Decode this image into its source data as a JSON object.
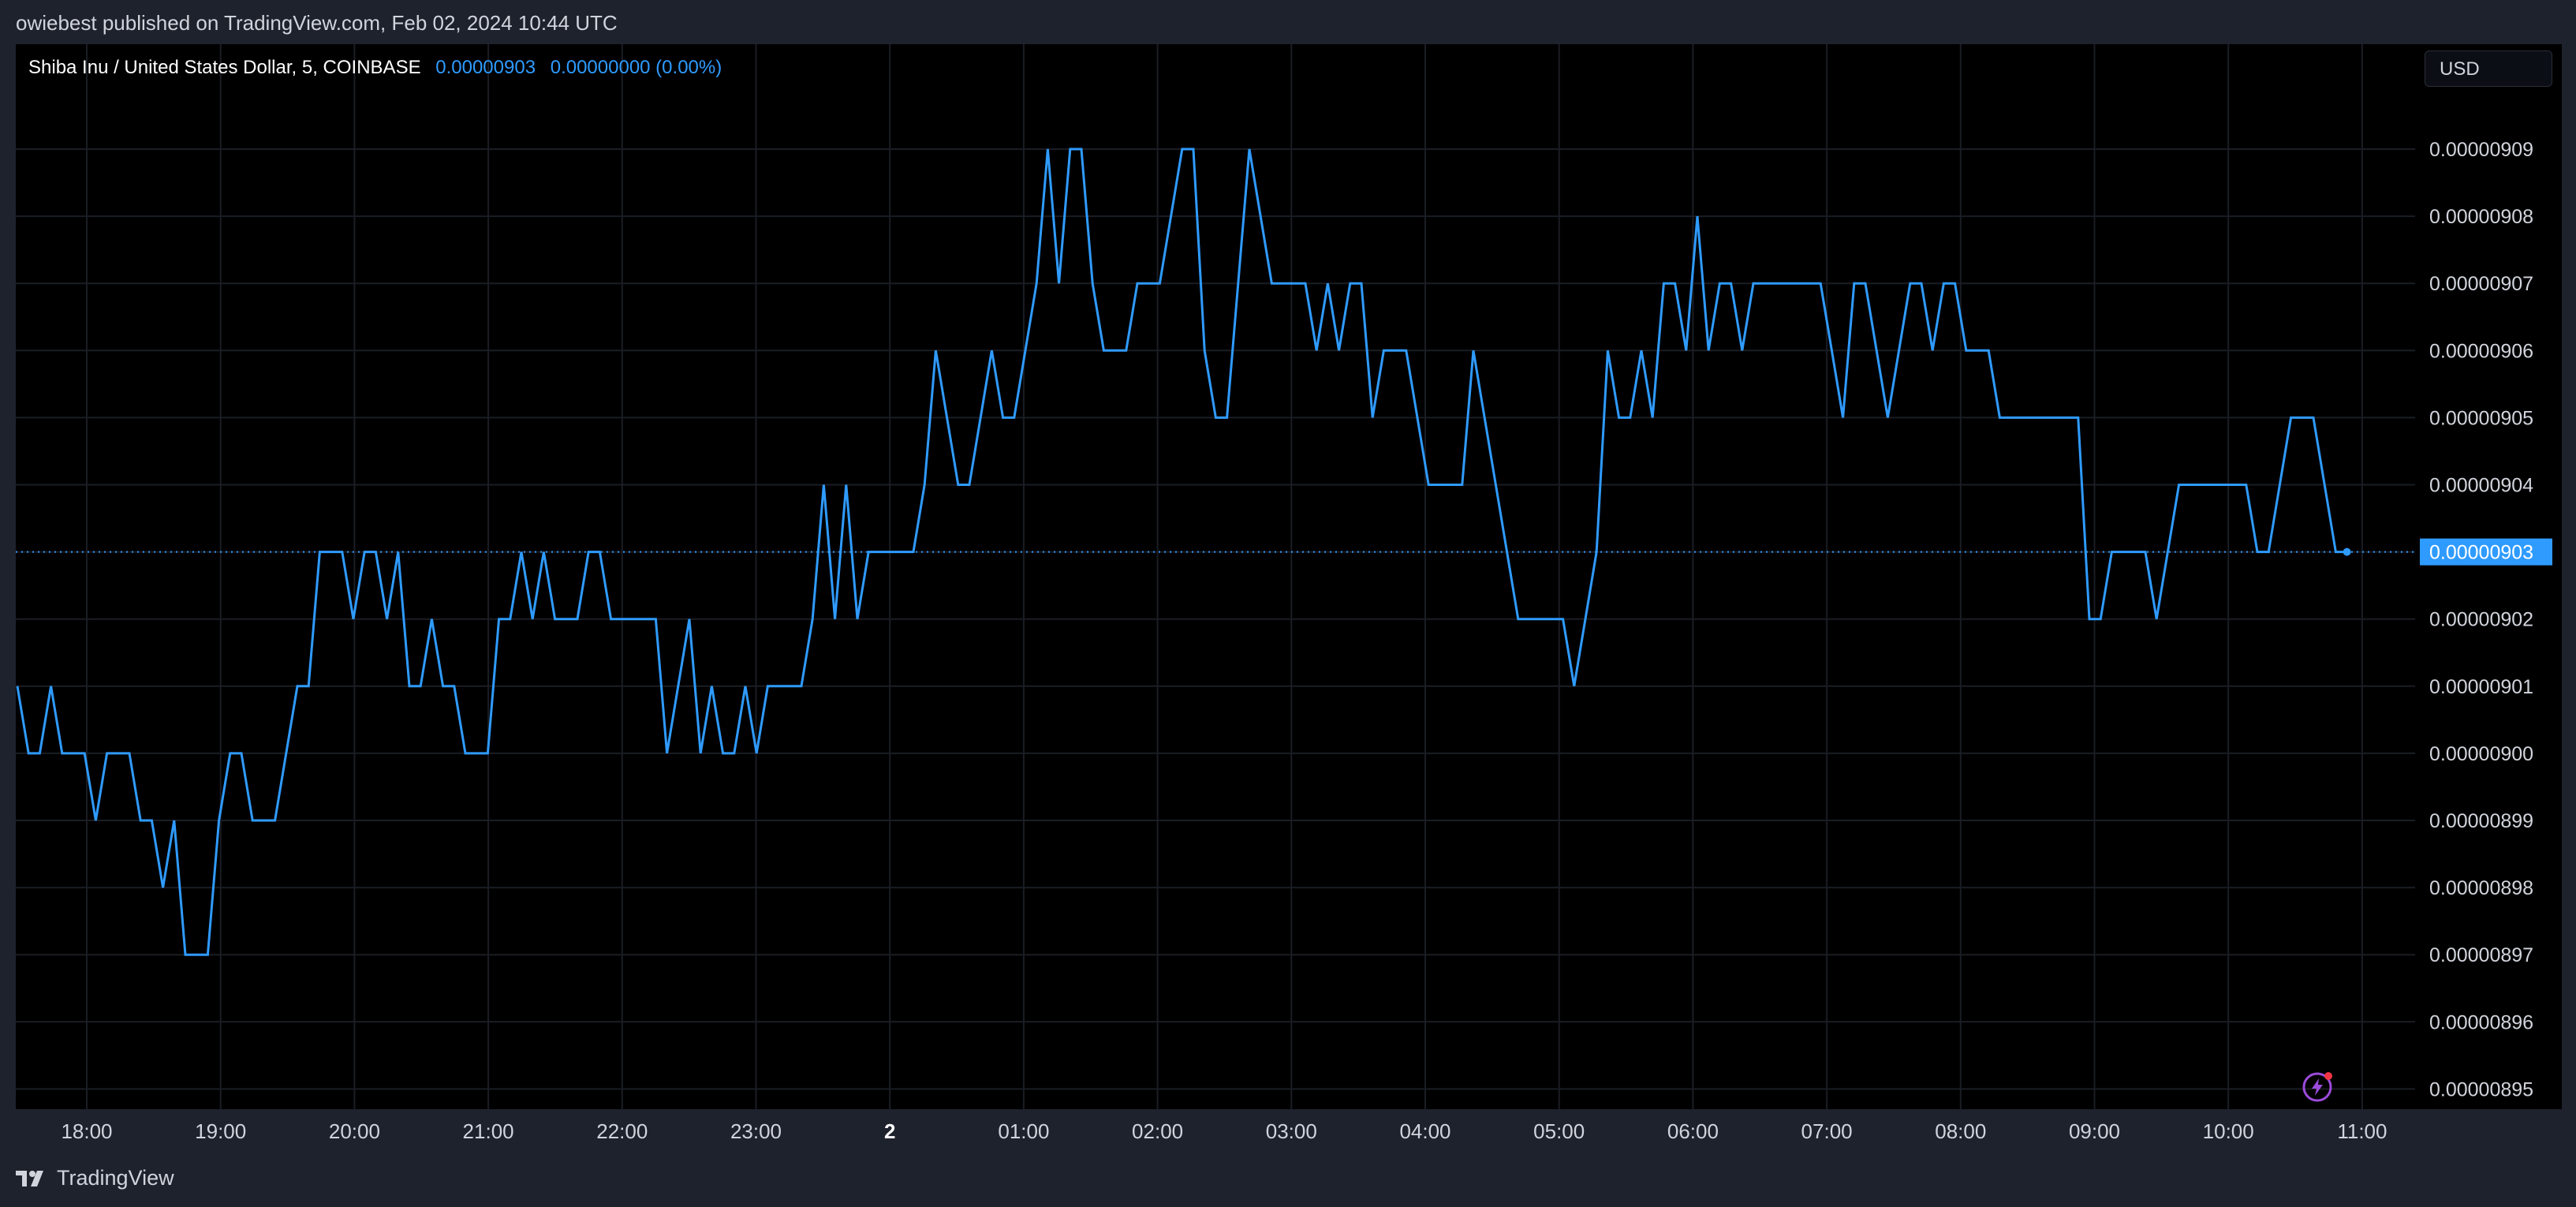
{
  "header": {
    "publisher_text": "owiebest published on TradingView.com, Feb 02, 2024 10:44 UTC"
  },
  "legend": {
    "symbol": "Shiba Inu / United States Dollar, 5, COINBASE",
    "last_price": "0.00000903",
    "change": "0.00000000 (0.00%)"
  },
  "currency_button": {
    "label": "USD"
  },
  "footer": {
    "brand": "TradingView"
  },
  "colors": {
    "line": "#2f9bff",
    "background": "#000000",
    "frame": "#1e222d",
    "price_tag": "#2f9bff",
    "grid": "#1a1d24"
  },
  "icons": {
    "logo": "tradingview-logo-icon",
    "bolt": "lightning-bolt-icon"
  },
  "chart_data": {
    "type": "line",
    "title": "Shiba Inu / United States Dollar, 5, COINBASE",
    "interval_minutes": 5,
    "x_tick_labels": [
      "18:00",
      "19:00",
      "20:00",
      "21:00",
      "22:00",
      "23:00",
      "2",
      "01:00",
      "02:00",
      "03:00",
      "04:00",
      "05:00",
      "06:00",
      "07:00",
      "08:00",
      "09:00",
      "10:00",
      "11:00"
    ],
    "y_tick_labels": [
      "0.00000909",
      "0.00000908",
      "0.00000907",
      "0.00000906",
      "0.00000905",
      "0.00000904",
      "0.00000903",
      "0.00000902",
      "0.00000901",
      "0.00000900",
      "0.00000899",
      "0.00000898",
      "0.00000897",
      "0.00000896",
      "0.00000895"
    ],
    "ylim": [
      8.95e-06,
      9.09e-06
    ],
    "last_value_label": "0.00000903",
    "grid": true,
    "series": [
      {
        "values": [
          9.01,
          9.0,
          9.0,
          9.01,
          9.0,
          9.0,
          9.0,
          8.99,
          9.0,
          9.0,
          9.0,
          8.99,
          8.99,
          8.98,
          8.99,
          8.97,
          8.97,
          8.97,
          8.99,
          9.0,
          9.0,
          8.99,
          8.99,
          8.99,
          9.0,
          9.01,
          9.01,
          9.03,
          9.03,
          9.03,
          9.02,
          9.03,
          9.03,
          9.02,
          9.03,
          9.01,
          9.01,
          9.02,
          9.01,
          9.01,
          9.0,
          9.0,
          9.0,
          9.02,
          9.02,
          9.03,
          9.02,
          9.03,
          9.02,
          9.02,
          9.02,
          9.03,
          9.03,
          9.02,
          9.02,
          9.02,
          9.02,
          9.02,
          9.0,
          9.01,
          9.02,
          9.0,
          9.01,
          9.0,
          9.0,
          9.01,
          9.0,
          9.01,
          9.01,
          9.01,
          9.01,
          9.02,
          9.04,
          9.02,
          9.04,
          9.02,
          9.03,
          9.03,
          9.03,
          9.03,
          9.03,
          9.04,
          9.06,
          9.05,
          9.04,
          9.04,
          9.05,
          9.06,
          9.05,
          9.05,
          9.06,
          9.07,
          9.09,
          9.07,
          9.09,
          9.09,
          9.07,
          9.06,
          9.06,
          9.06,
          9.07,
          9.07,
          9.07,
          9.08,
          9.09,
          9.09,
          9.06,
          9.05,
          9.05,
          9.07,
          9.09,
          9.08,
          9.07,
          9.07,
          9.07,
          9.07,
          9.06,
          9.07,
          9.06,
          9.07,
          9.07,
          9.05,
          9.06,
          9.06,
          9.06,
          9.05,
          9.04,
          9.04,
          9.04,
          9.04,
          9.06,
          9.05,
          9.04,
          9.03,
          9.02,
          9.02,
          9.02,
          9.02,
          9.02,
          9.01,
          9.02,
          9.03,
          9.06,
          9.05,
          9.05,
          9.06,
          9.05,
          9.07,
          9.07,
          9.06,
          9.08,
          9.06,
          9.07,
          9.07,
          9.06,
          9.07,
          9.07,
          9.07,
          9.07,
          9.07,
          9.07,
          9.07,
          9.06,
          9.05,
          9.07,
          9.07,
          9.06,
          9.05,
          9.06,
          9.07,
          9.07,
          9.06,
          9.07,
          9.07,
          9.06,
          9.06,
          9.06,
          9.05,
          9.05,
          9.05,
          9.05,
          9.05,
          9.05,
          9.05,
          9.05,
          9.02,
          9.02,
          9.03,
          9.03,
          9.03,
          9.03,
          9.02,
          9.03,
          9.04,
          9.04,
          9.04,
          9.04,
          9.04,
          9.04,
          9.04,
          9.03,
          9.03,
          9.04,
          9.05,
          9.05,
          9.05,
          9.04,
          9.03,
          9.03
        ],
        "unit_scale": "1e-6"
      }
    ]
  }
}
